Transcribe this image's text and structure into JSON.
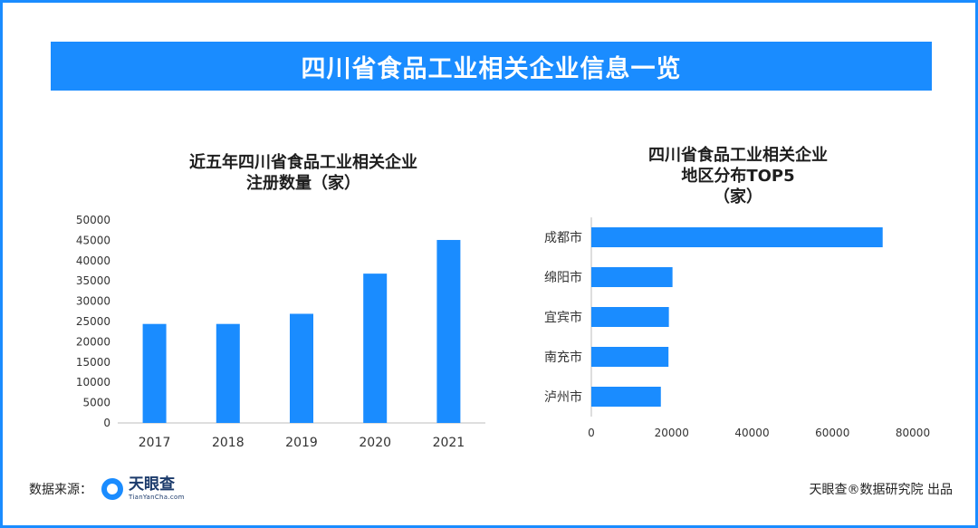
{
  "header": {
    "title": "四川省食品工业相关企业信息一览"
  },
  "left_chart": {
    "title_line1": "近五年四川省食品工业相关企业",
    "title_line2": "注册数量（家）"
  },
  "right_chart": {
    "title_line1": "四川省食品工业相关企业",
    "title_line2": "地区分布TOP5",
    "title_line3": "（家）"
  },
  "footer": {
    "source_label": "数据来源：",
    "logo_cn": "天眼查",
    "logo_en": "TianYanCha.com",
    "credit": "天眼查®数据研究院 出品"
  },
  "colors": {
    "accent": "#1a8cff",
    "bar": "#1a8cff",
    "axis": "#bdbdbd"
  },
  "icons": {
    "logo": "tianyancha-logo-icon"
  },
  "chart_data": [
    {
      "type": "bar",
      "orientation": "vertical",
      "title": "近五年四川省食品工业相关企业注册数量（家）",
      "categories": [
        "2017",
        "2018",
        "2019",
        "2020",
        "2021"
      ],
      "values": [
        24400,
        24400,
        26900,
        36800,
        45100
      ],
      "ylim": [
        0,
        50000
      ],
      "yticks": [
        "0",
        "5000",
        "10000",
        "15000",
        "20000",
        "25000",
        "30000",
        "35000",
        "40000",
        "45000",
        "50000"
      ],
      "grid": false
    },
    {
      "type": "bar",
      "orientation": "horizontal",
      "title": "四川省食品工业相关企业地区分布TOP5（家）",
      "categories": [
        "成都市",
        "绵阳市",
        "宜宾市",
        "南充市",
        "泸州市"
      ],
      "values": [
        72500,
        20200,
        19300,
        19200,
        17300
      ],
      "xlim": [
        0,
        80000
      ],
      "xticks": [
        "0",
        "20000",
        "40000",
        "60000",
        "80000"
      ],
      "grid": false
    }
  ]
}
